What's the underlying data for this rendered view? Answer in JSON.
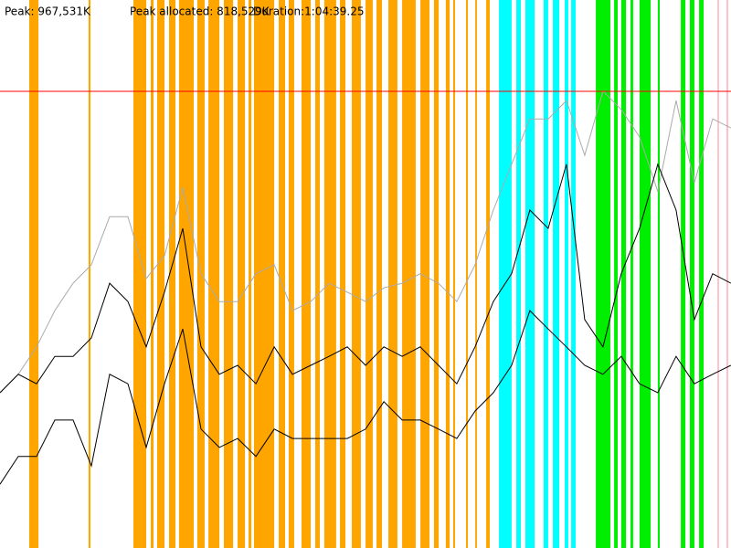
{
  "chart_data": {
    "type": "line",
    "header": [
      "Peak: 967,531K",
      "Peak allocated: 818,529K",
      "Duration:1:04:39.25"
    ],
    "xlim": [
      0,
      3879.25
    ],
    "ylim": [
      0,
      1161000
    ],
    "peak_line": {
      "value": 967531,
      "color": "#ff0000"
    },
    "bands": [
      {
        "color": "#ffa500",
        "ranges": [
          [
            155,
            204
          ],
          [
            470,
            480
          ],
          [
            708,
            776
          ],
          [
            800,
            815
          ],
          [
            834,
            873
          ],
          [
            897,
            931
          ],
          [
            950,
            1028
          ],
          [
            1047,
            1086
          ],
          [
            1106,
            1164
          ],
          [
            1188,
            1237
          ],
          [
            1261,
            1300
          ],
          [
            1319,
            1334
          ],
          [
            1348,
            1455
          ],
          [
            1479,
            1513
          ],
          [
            1532,
            1561
          ],
          [
            1600,
            1649
          ],
          [
            1673,
            1697
          ],
          [
            1721,
            1784
          ],
          [
            1804,
            1833
          ],
          [
            1867,
            1915
          ],
          [
            1940,
            1978
          ],
          [
            1998,
            2027
          ],
          [
            2061,
            2109
          ],
          [
            2134,
            2206
          ],
          [
            2231,
            2279
          ],
          [
            2303,
            2328
          ],
          [
            2366,
            2386
          ],
          [
            2405,
            2415
          ],
          [
            2473,
            2483
          ],
          [
            2522,
            2531
          ],
          [
            2580,
            2599
          ]
        ]
      },
      {
        "color": "#00ffff",
        "ranges": [
          [
            2648,
            2715
          ],
          [
            2740,
            2764
          ],
          [
            2788,
            2837
          ],
          [
            2885,
            2909
          ],
          [
            2934,
            2968
          ],
          [
            2997,
            3016
          ],
          [
            3031,
            3055
          ]
        ]
      },
      {
        "color": "#00ee00",
        "ranges": [
          [
            3162,
            3239
          ],
          [
            3259,
            3278
          ],
          [
            3297,
            3322
          ],
          [
            3346,
            3360
          ],
          [
            3394,
            3453
          ],
          [
            3491,
            3501
          ],
          [
            3613,
            3637
          ],
          [
            3661,
            3685
          ],
          [
            3710,
            3734
          ]
        ]
      },
      {
        "color": "#ffc0cb",
        "ranges": [
          [
            3807,
            3816
          ],
          [
            3855,
            3865
          ]
        ]
      }
    ],
    "x": [
      0,
      97,
      194,
      291,
      388,
      485,
      582,
      679,
      776,
      873,
      970,
      1067,
      1164,
      1261,
      1358,
      1455,
      1552,
      1649,
      1746,
      1843,
      1940,
      2037,
      2134,
      2230,
      2327,
      2424,
      2521,
      2618,
      2715,
      2812,
      2909,
      3006,
      3103,
      3200,
      3297,
      3394,
      3491,
      3588,
      3685,
      3782,
      3879
    ],
    "series": [
      {
        "color": "#aaaaaa",
        "values": [
          329000,
          368000,
          426000,
          503000,
          561000,
          600000,
          702000,
          702000,
          571000,
          619000,
          764000,
          581000,
          522000,
          522000,
          581000,
          600000,
          503000,
          522000,
          561000,
          542000,
          522000,
          551000,
          561000,
          581000,
          561000,
          522000,
          600000,
          716000,
          813000,
          909000,
          909000,
          948000,
          832000,
          968000,
          929000,
          871000,
          755000,
          948000,
          774000,
          909000,
          890000
        ]
      },
      {
        "color": "#000000",
        "values": [
          329000,
          368000,
          348000,
          406000,
          406000,
          445000,
          561000,
          522000,
          426000,
          542000,
          677000,
          426000,
          368000,
          387000,
          348000,
          426000,
          368000,
          387000,
          406000,
          426000,
          387000,
          426000,
          406000,
          426000,
          387000,
          348000,
          426000,
          522000,
          581000,
          716000,
          677000,
          813000,
          484000,
          426000,
          581000,
          677000,
          813000,
          716000,
          484000,
          581000,
          561000
        ]
      },
      {
        "color": "#000000",
        "values": [
          135000,
          194000,
          194000,
          271000,
          271000,
          174000,
          368000,
          348000,
          213000,
          348000,
          464000,
          252000,
          213000,
          232000,
          194000,
          252000,
          232000,
          232000,
          232000,
          232000,
          252000,
          310000,
          271000,
          271000,
          252000,
          232000,
          290000,
          329000,
          387000,
          503000,
          464000,
          426000,
          387000,
          368000,
          406000,
          348000,
          329000,
          406000,
          348000,
          368000,
          387000
        ]
      }
    ]
  }
}
